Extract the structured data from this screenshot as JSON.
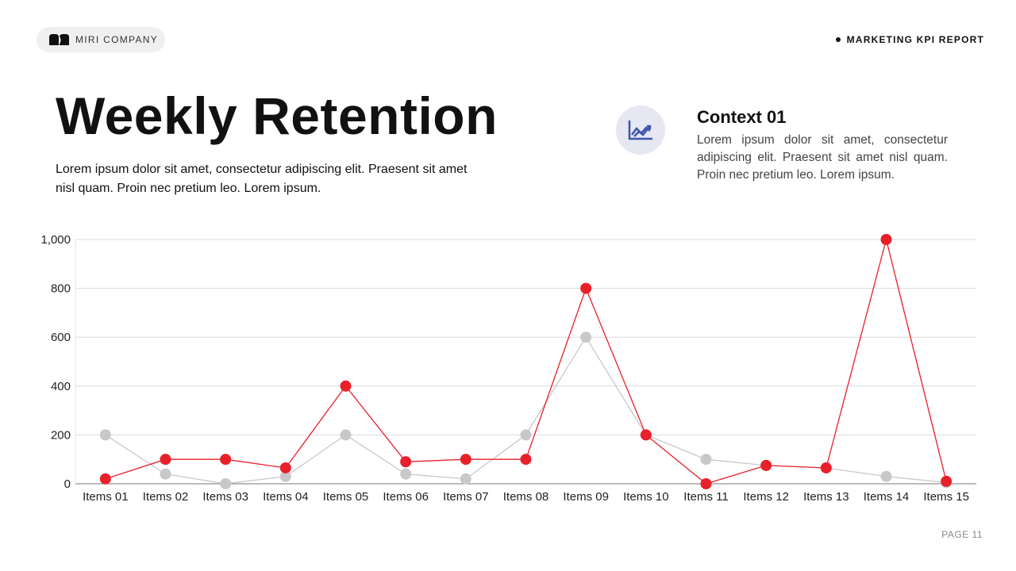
{
  "brand": {
    "name": "MIRI COMPANY",
    "logo_icon": "miri-logo"
  },
  "header": {
    "report_label": "MARKETING KPI REPORT"
  },
  "title": "Weekly Retention",
  "description": "Lorem ipsum dolor sit amet, consectetur adipiscing elit. Praesent sit amet nisl quam. Proin nec pretium leo. Lorem ipsum.",
  "context": {
    "icon": "line-chart-icon",
    "title": "Context 01",
    "body": "Lorem ipsum dolor sit amet, consectetur adipiscing elit. Praesent sit amet nisl quam. Proin nec pretium leo. Lorem ipsum."
  },
  "footer": {
    "page": "PAGE 11"
  },
  "colors": {
    "series_red": "#e8202a",
    "series_gray": "#c8c8cb",
    "icon_blue": "#3d55a8"
  },
  "chart_data": {
    "type": "line",
    "categories": [
      "Items 01",
      "Items 02",
      "Items 03",
      "Items 04",
      "Items 05",
      "Items 06",
      "Items 07",
      "Items 08",
      "Items 09",
      "Items 10",
      "Items 11",
      "Items 12",
      "Items 13",
      "Items 14",
      "Items 15"
    ],
    "series": [
      {
        "color": "#c8c8cb",
        "values": [
          200,
          40,
          0,
          30,
          200,
          40,
          20,
          200,
          600,
          200,
          100,
          75,
          65,
          30,
          5
        ]
      },
      {
        "color": "#e8202a",
        "values": [
          20,
          100,
          100,
          65,
          400,
          90,
          100,
          100,
          800,
          200,
          0,
          75,
          65,
          1000,
          10
        ]
      }
    ],
    "yticks": [
      0,
      200,
      400,
      600,
      800,
      1000
    ],
    "ytick_labels": [
      "0",
      "200",
      "400",
      "600",
      "800",
      "1,000"
    ],
    "ylim": [
      0,
      1000
    ],
    "grid": true,
    "legend": "none"
  }
}
